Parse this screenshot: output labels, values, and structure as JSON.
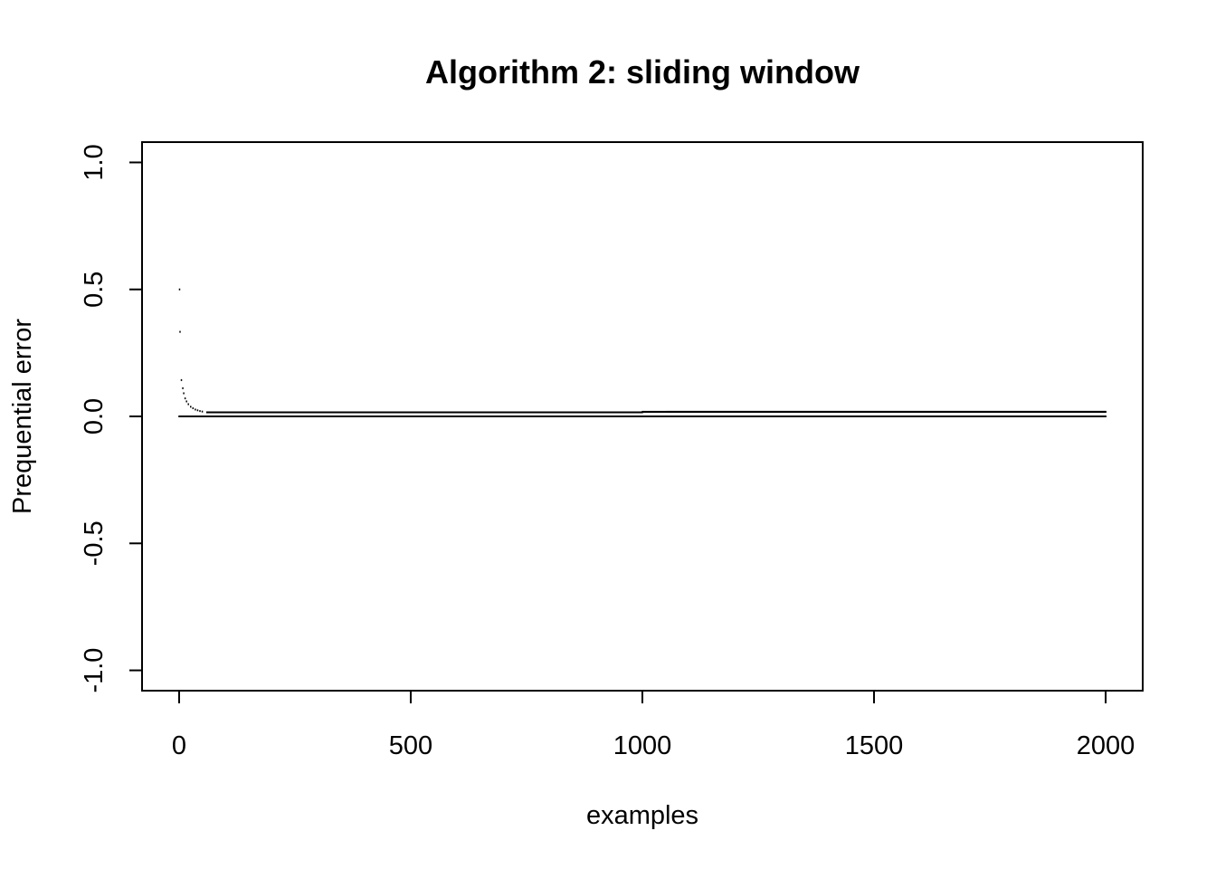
{
  "chart_data": {
    "type": "scatter",
    "title": "Algorithm 2: sliding window",
    "xlabel": "examples",
    "ylabel": "Prequential error",
    "xlim": [
      -80,
      2080
    ],
    "ylim": [
      -1.08,
      1.08
    ],
    "x_ticks": [
      0,
      500,
      1000,
      1500,
      2000
    ],
    "x_tick_labels": [
      "0",
      "500",
      "1000",
      "1500",
      "2000"
    ],
    "y_ticks": [
      -1.0,
      -0.5,
      0.0,
      0.5,
      1.0
    ],
    "y_tick_labels": [
      "-1.0",
      "-0.5",
      "0.0",
      "0.5",
      "1.0"
    ],
    "grid": false,
    "legend": "none",
    "point_color": "#000000",
    "series": [
      {
        "points": [
          [
            1,
            0.5
          ],
          [
            2,
            0.333
          ],
          [
            5,
            0.143
          ],
          [
            8,
            0.111
          ],
          [
            10,
            0.091
          ],
          [
            13,
            0.071
          ],
          [
            16,
            0.059
          ],
          [
            20,
            0.048
          ],
          [
            25,
            0.038
          ],
          [
            30,
            0.032
          ],
          [
            35,
            0.027
          ],
          [
            40,
            0.024
          ],
          [
            45,
            0.021
          ],
          [
            50,
            0.019
          ],
          [
            60,
            0.016
          ],
          [
            0,
            0.0
          ],
          [
            1000,
            0.0
          ],
          [
            2000,
            0.0
          ],
          [
            1000,
            0.018
          ],
          [
            2000,
            0.018
          ]
        ]
      }
    ]
  }
}
